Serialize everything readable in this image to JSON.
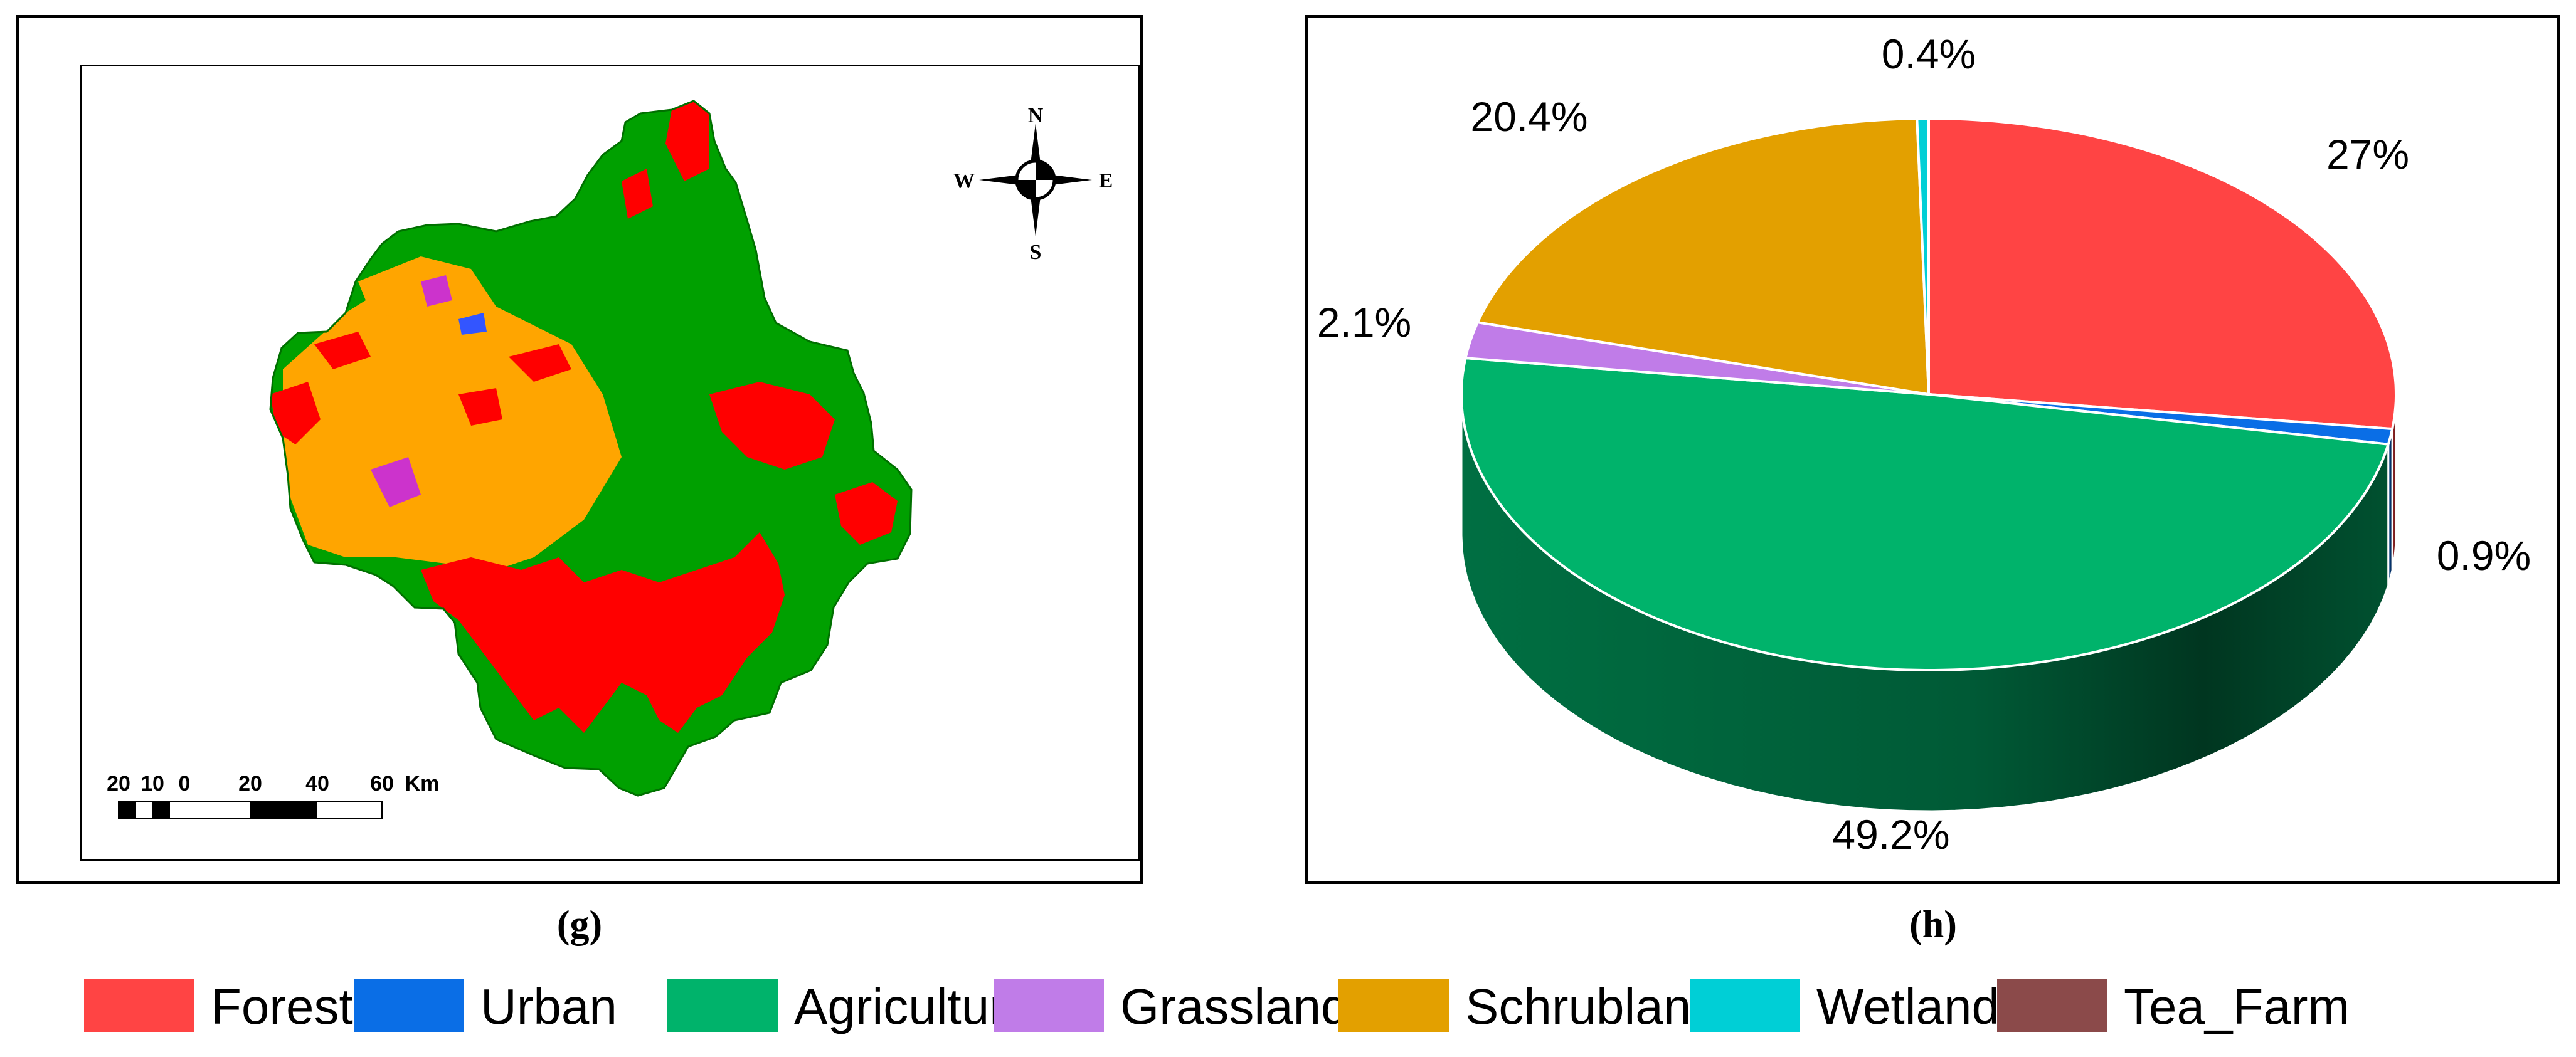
{
  "figure": {
    "panels": [
      {
        "id": "g",
        "label": "(g)",
        "type": "map",
        "compass": {
          "north": "N",
          "south": "S",
          "east": "E",
          "west": "W"
        },
        "scale_bar": {
          "ticks": [
            "20",
            "10",
            "0",
            "20",
            "40",
            "60"
          ],
          "unit": "Km"
        },
        "class_colors": {
          "Forest": "#ff0000",
          "Agriculture": "#00a000",
          "Schrubland": "#ffa500",
          "Grassland": "#cc33cc",
          "Urban": "#3355ff"
        }
      },
      {
        "id": "h",
        "label": "(h)",
        "type": "pie-3d"
      }
    ]
  },
  "chart_data": {
    "type": "pie",
    "title": "",
    "slices": [
      {
        "name": "Forest",
        "value": 27,
        "label": "27%",
        "color": "#ff4444"
      },
      {
        "name": "Urban",
        "value": 0.9,
        "label": "0.9%",
        "color": "#0a6ee6"
      },
      {
        "name": "Agriculture",
        "value": 49.2,
        "label": "49.2%",
        "color": "#00b36b"
      },
      {
        "name": "Grassland",
        "value": 2.1,
        "label": "2.1%",
        "color": "#c07ce8"
      },
      {
        "name": "Schrubland",
        "value": 20.4,
        "label": "20.4%",
        "color": "#e3a000"
      },
      {
        "name": "Wetland",
        "value": 0.4,
        "label": "0.4%",
        "color": "#00cfd6"
      },
      {
        "name": "Tea_Farm",
        "value": 0,
        "label": "",
        "color": "#8b4a4a"
      }
    ],
    "legend_position": "bottom"
  },
  "legend": [
    {
      "label": "Forest",
      "color": "#ff4444"
    },
    {
      "label": "Urban",
      "color": "#0a6ee6"
    },
    {
      "label": "Agriculture",
      "color": "#00b36b"
    },
    {
      "label": "Grassland",
      "color": "#c07ce8"
    },
    {
      "label": "Schrubland",
      "color": "#e3a000"
    },
    {
      "label": "Wetland",
      "color": "#00cfd6"
    },
    {
      "label": "Tea_Farm",
      "color": "#8b4a4a"
    }
  ]
}
